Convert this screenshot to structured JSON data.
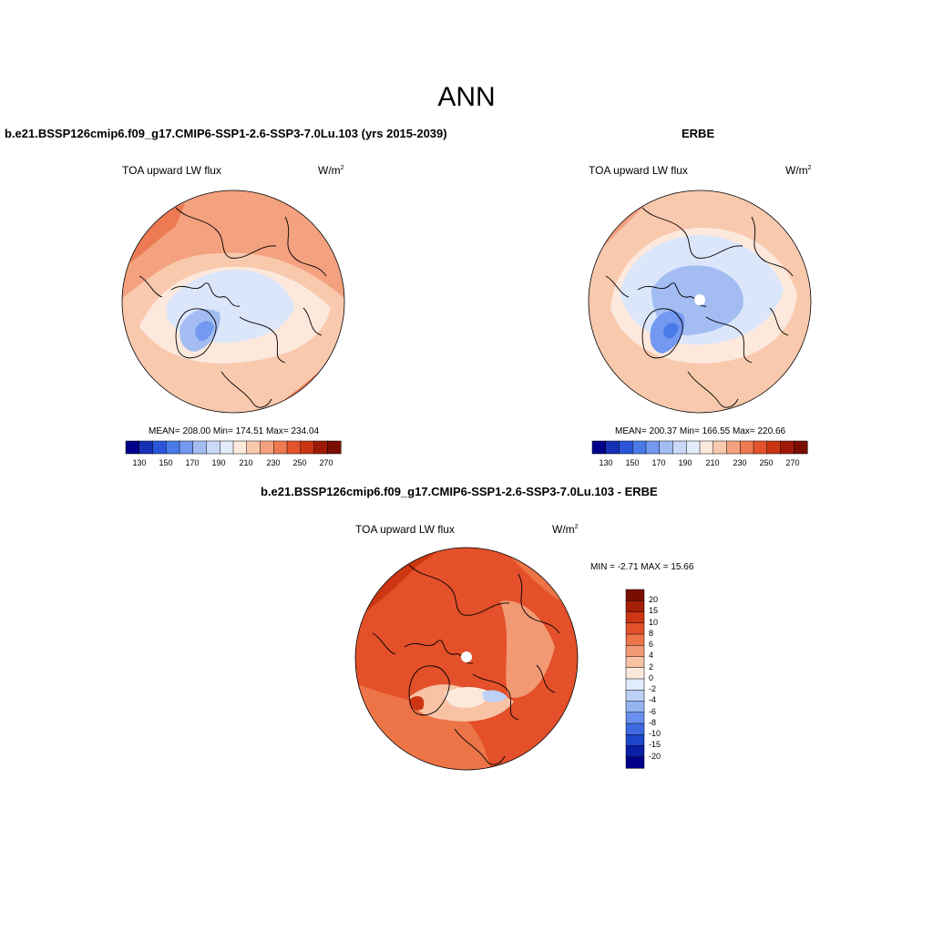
{
  "figure": {
    "title": "ANN",
    "variable": "TOA upward LW flux",
    "units_base": "W/m",
    "units_exp": "2"
  },
  "panels": [
    {
      "title": "b.e21.BSSP126cmip6.f09_g17.CMIP6-SSP1-2.6-SSP3-7.0Lu.103 (yrs 2015-2039)",
      "stats": "MEAN= 208.00  Min= 174.51  Max= 234.04",
      "colorbar_ticks": [
        "130",
        "150",
        "170",
        "190",
        "210",
        "230",
        "250",
        "270"
      ]
    },
    {
      "title": "ERBE",
      "stats": "MEAN= 200.37  Min= 166.55  Max= 220.66",
      "colorbar_ticks": [
        "130",
        "150",
        "170",
        "190",
        "210",
        "230",
        "250",
        "270"
      ]
    },
    {
      "title": "b.e21.BSSP126cmip6.f09_g17.CMIP6-SSP1-2.6-SSP3-7.0Lu.103 - ERBE",
      "stats": "MIN =  -2.71 MAX =  15.66",
      "colorbar_labels": [
        "20",
        "15",
        "10",
        "8",
        "6",
        "4",
        "2",
        "0",
        "-2",
        "-4",
        "-6",
        "-8",
        "-10",
        "-15",
        "-20"
      ]
    }
  ],
  "chart_data": [
    {
      "type": "heatmap",
      "projection": "north polar stereographic",
      "title": "b.e21.BSSP126cmip6.f09_g17.CMIP6-SSP1-2.6-SSP3-7.0Lu.103 (yrs 2015-2039)",
      "variable": "TOA upward LW flux",
      "units": "W/m2",
      "mean": 208.0,
      "min": 174.51,
      "max": 234.04,
      "levels": [
        130,
        140,
        150,
        160,
        170,
        180,
        190,
        200,
        210,
        220,
        230,
        240,
        250,
        260,
        270
      ],
      "colors": [
        "#00008b",
        "#1530b5",
        "#2a55d8",
        "#4a7ae8",
        "#7399f0",
        "#a3bdf3",
        "#c9d9f7",
        "#e2ecfb",
        "#fde8dc",
        "#f9c9ae",
        "#f3a17f",
        "#ed7a52",
        "#e3532c",
        "#c93512",
        "#9e1a06",
        "#7a0d02"
      ]
    },
    {
      "type": "heatmap",
      "projection": "north polar stereographic",
      "title": "ERBE",
      "variable": "TOA upward LW flux",
      "units": "W/m2",
      "mean": 200.37,
      "min": 166.55,
      "max": 220.66,
      "levels": [
        130,
        140,
        150,
        160,
        170,
        180,
        190,
        200,
        210,
        220,
        230,
        240,
        250,
        260,
        270
      ]
    },
    {
      "type": "heatmap",
      "projection": "north polar stereographic",
      "title": "b.e21.BSSP126cmip6.f09_g17.CMIP6-SSP1-2.6-SSP3-7.0Lu.103 - ERBE",
      "variable": "TOA upward LW flux",
      "units": "W/m2",
      "min": -2.71,
      "max": 15.66,
      "levels": [
        -20,
        -15,
        -10,
        -8,
        -6,
        -4,
        -2,
        0,
        2,
        4,
        6,
        8,
        10,
        15,
        20
      ],
      "colors": [
        "#00008b",
        "#0b1fa6",
        "#1f47cc",
        "#3d6ae0",
        "#6890ee",
        "#95b4f2",
        "#bcd1f6",
        "#e0ebfb",
        "#fde8dc",
        "#f8c2a4",
        "#f29a74",
        "#ec7447",
        "#e3502a",
        "#cc3612",
        "#a51e06",
        "#7a0d02"
      ]
    }
  ]
}
